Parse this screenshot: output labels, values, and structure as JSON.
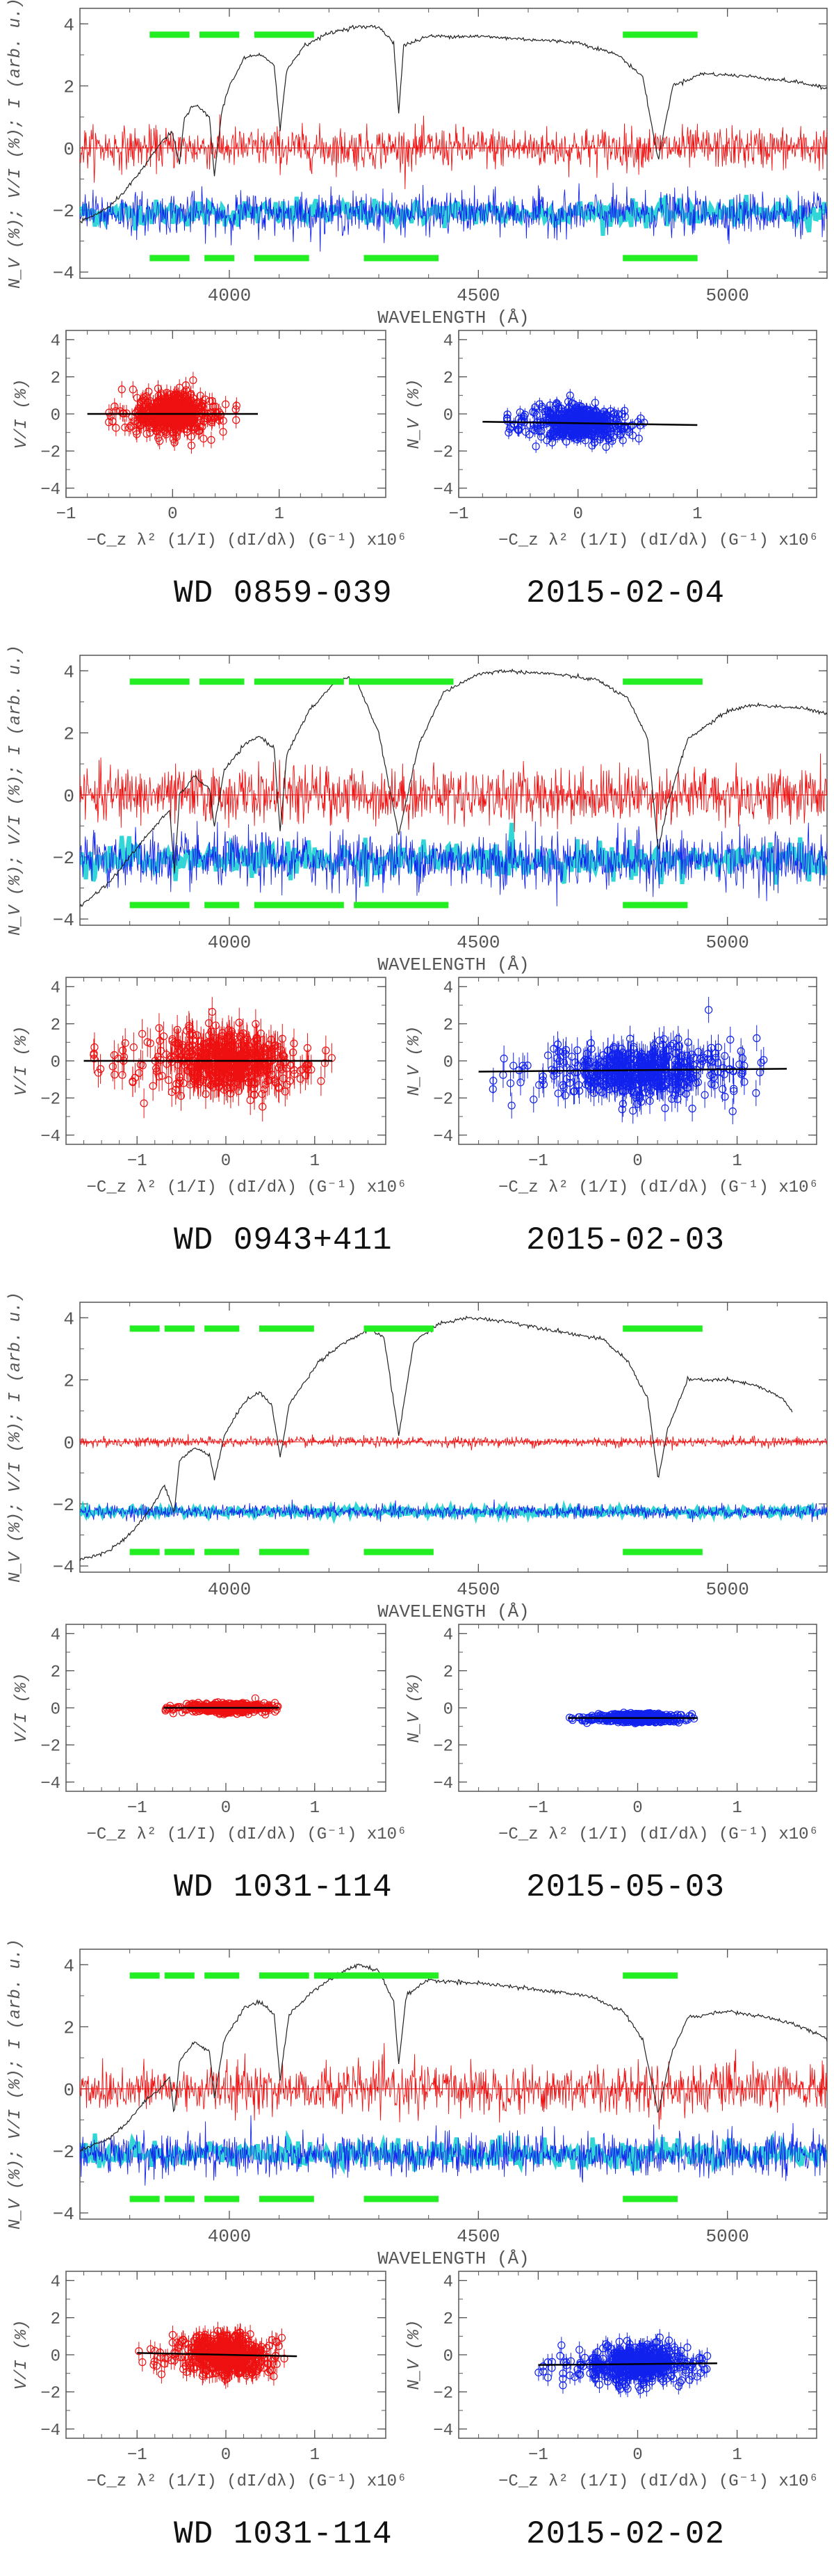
{
  "colors": {
    "intensity": "#222222",
    "stokes_v": "#ee1111",
    "null": "#1122ee",
    "null_band": "#00cccc",
    "mask": "#22ee22",
    "frame": "#555555",
    "fit": "#000000"
  },
  "chart_data": [
    {
      "type": "line",
      "target": "WD 0859-039",
      "date": "2015-02-04",
      "spectrum": {
        "xlabel": "WAVELENGTH (Å)",
        "ylabel": "N_V (%); V/I (%); I (arb. u.)",
        "xlim": [
          3700,
          5200
        ],
        "ylim": [
          -4.2,
          4.5
        ],
        "xticks": [
          4000,
          4500,
          5000
        ],
        "yticks": [
          -4,
          -2,
          0,
          2,
          4
        ],
        "continuum": [
          [
            3700,
            -2.4
          ],
          [
            3760,
            -1.9
          ],
          [
            3800,
            -1.2
          ],
          [
            3830,
            -0.6
          ],
          [
            3850,
            -0.1
          ],
          [
            3870,
            0.3
          ],
          [
            3885,
            0.5
          ],
          [
            3900,
            -0.5
          ],
          [
            3910,
            1.0
          ],
          [
            3930,
            1.4
          ],
          [
            3960,
            1.0
          ],
          [
            3970,
            -0.9
          ],
          [
            3985,
            1.2
          ],
          [
            4000,
            2.0
          ],
          [
            4030,
            2.9
          ],
          [
            4060,
            3.0
          ],
          [
            4090,
            2.7
          ],
          [
            4102,
            0.6
          ],
          [
            4115,
            2.5
          ],
          [
            4150,
            3.3
          ],
          [
            4200,
            3.7
          ],
          [
            4250,
            3.9
          ],
          [
            4300,
            3.9
          ],
          [
            4330,
            3.4
          ],
          [
            4340,
            1.1
          ],
          [
            4350,
            3.3
          ],
          [
            4400,
            3.6
          ],
          [
            4500,
            3.6
          ],
          [
            4600,
            3.5
          ],
          [
            4700,
            3.4
          ],
          [
            4780,
            3.0
          ],
          [
            4830,
            2.3
          ],
          [
            4861,
            -0.4
          ],
          [
            4890,
            2.0
          ],
          [
            4950,
            2.4
          ],
          [
            5050,
            2.3
          ],
          [
            5150,
            2.1
          ],
          [
            5200,
            1.9
          ]
        ],
        "stokes_v": {
          "level": 0.0,
          "amplitude": 0.6
        },
        "null": {
          "level": -2.1,
          "amplitude": 0.6
        },
        "mask_top": [
          [
            3840,
            3920
          ],
          [
            3940,
            4020
          ],
          [
            4050,
            4170
          ],
          [
            4790,
            4940
          ]
        ],
        "mask_bottom": [
          [
            3840,
            3920
          ],
          [
            3950,
            4010
          ],
          [
            4050,
            4160
          ],
          [
            4270,
            4420
          ],
          [
            4790,
            4940
          ]
        ],
        "mask_top_y": 3.65,
        "mask_bottom_y": -3.55
      },
      "v_panel": {
        "ylabel": "V/I (%)",
        "xlim": [
          -1.0,
          2.0
        ],
        "ylim": [
          -4.5,
          4.5
        ],
        "xticks": [
          -1,
          0,
          1
        ],
        "yticks": [
          -4,
          -2,
          0,
          2,
          4
        ],
        "cloud_x": [
          -0.6,
          0.6
        ],
        "cloud_y_spread": 0.55,
        "err": 0.45,
        "slope": 0.0,
        "fit_x": [
          -0.8,
          0.8
        ]
      },
      "n_panel": {
        "ylabel": "N_V (%)",
        "xlim": [
          -1.0,
          2.0
        ],
        "ylim": [
          -4.5,
          4.5
        ],
        "xticks": [
          -1,
          0,
          1
        ],
        "yticks": [
          -4,
          -2,
          0,
          2,
          4
        ],
        "cloud_x": [
          -0.6,
          0.6
        ],
        "cloud_y_spread": 0.45,
        "err": 0.35,
        "offset": -0.5,
        "slope": -0.1,
        "fit_x": [
          -0.8,
          1.0
        ]
      },
      "corr_xlabel": "−C_z λ² (1/I) (dI/dλ) (G⁻¹) x10⁶"
    },
    {
      "type": "line",
      "target": "WD 0943+411",
      "date": "2015-02-03",
      "spectrum": {
        "xlabel": "WAVELENGTH (Å)",
        "ylabel": "N_V (%); V/I (%); I (arb. u.)",
        "xlim": [
          3700,
          5200
        ],
        "ylim": [
          -4.2,
          4.5
        ],
        "xticks": [
          4000,
          4500,
          5000
        ],
        "yticks": [
          -4,
          -2,
          0,
          2,
          4
        ],
        "continuum": [
          [
            3700,
            -3.6
          ],
          [
            3760,
            -2.8
          ],
          [
            3800,
            -2.0
          ],
          [
            3840,
            -1.2
          ],
          [
            3880,
            -0.5
          ],
          [
            3890,
            -2.5
          ],
          [
            3900,
            0.0
          ],
          [
            3930,
            0.6
          ],
          [
            3960,
            0.2
          ],
          [
            3970,
            -1.0
          ],
          [
            3990,
            0.8
          ],
          [
            4030,
            1.6
          ],
          [
            4060,
            1.9
          ],
          [
            4090,
            1.5
          ],
          [
            4102,
            -1.2
          ],
          [
            4115,
            1.3
          ],
          [
            4160,
            2.7
          ],
          [
            4210,
            3.6
          ],
          [
            4240,
            3.8
          ],
          [
            4260,
            3.5
          ],
          [
            4300,
            2.0
          ],
          [
            4340,
            -1.3
          ],
          [
            4380,
            1.6
          ],
          [
            4430,
            3.3
          ],
          [
            4500,
            3.9
          ],
          [
            4550,
            4.0
          ],
          [
            4650,
            3.9
          ],
          [
            4740,
            3.7
          ],
          [
            4800,
            3.1
          ],
          [
            4840,
            1.8
          ],
          [
            4861,
            -1.8
          ],
          [
            4880,
            -0.3
          ],
          [
            4920,
            1.8
          ],
          [
            5000,
            2.7
          ],
          [
            5050,
            2.9
          ],
          [
            5150,
            2.8
          ],
          [
            5200,
            2.6
          ]
        ],
        "stokes_v": {
          "level": 0.0,
          "amplitude": 0.8
        },
        "null": {
          "level": -2.1,
          "amplitude": 0.8
        },
        "mask_top": [
          [
            3800,
            3920
          ],
          [
            3940,
            4030
          ],
          [
            4050,
            4230
          ],
          [
            4240,
            4450
          ],
          [
            4790,
            4950
          ]
        ],
        "mask_bottom": [
          [
            3800,
            3920
          ],
          [
            3950,
            4020
          ],
          [
            4050,
            4230
          ],
          [
            4250,
            4440
          ],
          [
            4790,
            4920
          ]
        ],
        "mask_top_y": 3.65,
        "mask_bottom_y": -3.55
      },
      "v_panel": {
        "ylabel": "V/I (%)",
        "xlim": [
          -1.8,
          1.8
        ],
        "ylim": [
          -4.5,
          4.5
        ],
        "xticks": [
          -1,
          0,
          1
        ],
        "yticks": [
          -4,
          -2,
          0,
          2,
          4
        ],
        "cloud_x": [
          -1.5,
          1.3
        ],
        "cloud_y_spread": 0.8,
        "err": 0.8,
        "slope": 0.0,
        "fit_x": [
          -1.6,
          1.2
        ]
      },
      "n_panel": {
        "ylabel": "N_V (%)",
        "xlim": [
          -1.8,
          1.8
        ],
        "ylim": [
          -4.5,
          4.5
        ],
        "xticks": [
          -1,
          0,
          1
        ],
        "yticks": [
          -4,
          -2,
          0,
          2,
          4
        ],
        "cloud_x": [
          -1.5,
          1.3
        ],
        "cloud_y_spread": 0.75,
        "err": 0.7,
        "offset": -0.5,
        "slope": 0.05,
        "fit_x": [
          -1.6,
          1.5
        ]
      },
      "corr_xlabel": "−C_z λ² (1/I) (dI/dλ) (G⁻¹) x10⁶"
    },
    {
      "type": "line",
      "target": "WD 1031-114",
      "date": "2015-05-03",
      "spectrum": {
        "xlabel": "WAVELENGTH (Å)",
        "ylabel": "N_V (%); V/I (%); I (arb. u.)",
        "xlim": [
          3700,
          5200
        ],
        "ylim": [
          -4.2,
          4.5
        ],
        "xticks": [
          4000,
          4500,
          5000
        ],
        "yticks": [
          -4,
          -2,
          0,
          2,
          4
        ],
        "continuum": [
          [
            3700,
            -3.8
          ],
          [
            3760,
            -3.5
          ],
          [
            3800,
            -3.0
          ],
          [
            3840,
            -2.2
          ],
          [
            3870,
            -1.4
          ],
          [
            3889,
            -2.3
          ],
          [
            3900,
            -0.6
          ],
          [
            3930,
            -0.2
          ],
          [
            3960,
            -0.4
          ],
          [
            3970,
            -1.2
          ],
          [
            3990,
            0.2
          ],
          [
            4030,
            1.3
          ],
          [
            4060,
            1.6
          ],
          [
            4085,
            1.2
          ],
          [
            4102,
            -0.5
          ],
          [
            4120,
            1.2
          ],
          [
            4180,
            2.6
          ],
          [
            4230,
            3.2
          ],
          [
            4280,
            3.6
          ],
          [
            4310,
            3.4
          ],
          [
            4340,
            0.2
          ],
          [
            4370,
            3.2
          ],
          [
            4420,
            3.8
          ],
          [
            4480,
            4.0
          ],
          [
            4550,
            3.9
          ],
          [
            4650,
            3.6
          ],
          [
            4750,
            3.3
          ],
          [
            4800,
            2.6
          ],
          [
            4840,
            1.4
          ],
          [
            4861,
            -1.2
          ],
          [
            4880,
            0.4
          ],
          [
            4920,
            2.0
          ],
          [
            5000,
            2.0
          ],
          [
            5060,
            1.8
          ],
          [
            5110,
            1.4
          ],
          [
            5130,
            1.0
          ]
        ],
        "stokes_v": {
          "level": 0.0,
          "amplitude": 0.15
        },
        "null": {
          "level": -2.25,
          "amplitude": 0.2
        },
        "mask_top": [
          [
            3800,
            3860
          ],
          [
            3870,
            3930
          ],
          [
            3950,
            4020
          ],
          [
            4060,
            4170
          ],
          [
            4270,
            4410
          ],
          [
            4790,
            4950
          ]
        ],
        "mask_bottom": [
          [
            3800,
            3860
          ],
          [
            3870,
            3930
          ],
          [
            3950,
            4020
          ],
          [
            4060,
            4160
          ],
          [
            4270,
            4410
          ],
          [
            4790,
            4950
          ]
        ],
        "mask_top_y": 3.65,
        "mask_bottom_y": -3.55
      },
      "v_panel": {
        "ylabel": "V/I (%)",
        "xlim": [
          -1.8,
          1.8
        ],
        "ylim": [
          -4.5,
          4.5
        ],
        "xticks": [
          -1,
          0,
          1
        ],
        "yticks": [
          -4,
          -2,
          0,
          2,
          4
        ],
        "cloud_x": [
          -0.7,
          0.6
        ],
        "cloud_y_spread": 0.12,
        "err": 0.1,
        "slope": 0.0,
        "fit_x": [
          -0.7,
          0.6
        ]
      },
      "n_panel": {
        "ylabel": "N_V (%)",
        "xlim": [
          -1.8,
          1.8
        ],
        "ylim": [
          -4.5,
          4.5
        ],
        "xticks": [
          -1,
          0,
          1
        ],
        "yticks": [
          -4,
          -2,
          0,
          2,
          4
        ],
        "cloud_x": [
          -0.7,
          0.6
        ],
        "cloud_y_spread": 0.12,
        "err": 0.1,
        "offset": -0.55,
        "slope": 0.0,
        "fit_x": [
          -0.7,
          0.6
        ]
      },
      "corr_xlabel": "−C_z λ² (1/I) (dI/dλ) (G⁻¹) x10⁶"
    },
    {
      "type": "line",
      "target": "WD 1031-114",
      "date": "2015-02-02",
      "spectrum": {
        "xlabel": "WAVELENGTH (Å)",
        "ylabel": "N_V (%); V/I (%); I (arb. u.)",
        "xlim": [
          3700,
          5200
        ],
        "ylim": [
          -4.2,
          4.5
        ],
        "xticks": [
          4000,
          4500,
          5000
        ],
        "yticks": [
          -4,
          -2,
          0,
          2,
          4
        ],
        "continuum": [
          [
            3700,
            -2.0
          ],
          [
            3760,
            -1.6
          ],
          [
            3800,
            -1.0
          ],
          [
            3830,
            -0.4
          ],
          [
            3860,
            0.0
          ],
          [
            3880,
            0.4
          ],
          [
            3889,
            -0.8
          ],
          [
            3900,
            0.9
          ],
          [
            3930,
            1.5
          ],
          [
            3960,
            1.2
          ],
          [
            3970,
            -0.3
          ],
          [
            3990,
            1.6
          ],
          [
            4030,
            2.6
          ],
          [
            4060,
            2.8
          ],
          [
            4090,
            2.4
          ],
          [
            4102,
            0.3
          ],
          [
            4120,
            2.4
          ],
          [
            4170,
            3.2
          ],
          [
            4220,
            3.7
          ],
          [
            4260,
            4.0
          ],
          [
            4300,
            3.8
          ],
          [
            4330,
            2.8
          ],
          [
            4340,
            0.8
          ],
          [
            4355,
            3.0
          ],
          [
            4400,
            3.5
          ],
          [
            4500,
            3.4
          ],
          [
            4620,
            3.2
          ],
          [
            4720,
            3.0
          ],
          [
            4790,
            2.5
          ],
          [
            4830,
            1.6
          ],
          [
            4861,
            -0.8
          ],
          [
            4885,
            1.0
          ],
          [
            4920,
            2.3
          ],
          [
            5000,
            2.5
          ],
          [
            5080,
            2.3
          ],
          [
            5150,
            2.0
          ],
          [
            5200,
            1.6
          ]
        ],
        "stokes_v": {
          "level": 0.0,
          "amplitude": 0.7
        },
        "null": {
          "level": -2.1,
          "amplitude": 0.6
        },
        "mask_top": [
          [
            3800,
            3860
          ],
          [
            3870,
            3930
          ],
          [
            3950,
            4020
          ],
          [
            4060,
            4160
          ],
          [
            4170,
            4420
          ],
          [
            4790,
            4900
          ]
        ],
        "mask_bottom": [
          [
            3800,
            3860
          ],
          [
            3870,
            3930
          ],
          [
            3950,
            4020
          ],
          [
            4060,
            4170
          ],
          [
            4270,
            4420
          ],
          [
            4790,
            4900
          ]
        ],
        "mask_top_y": 3.65,
        "mask_bottom_y": -3.55
      },
      "v_panel": {
        "ylabel": "V/I (%)",
        "xlim": [
          -1.8,
          1.8
        ],
        "ylim": [
          -4.5,
          4.5
        ],
        "xticks": [
          -1,
          0,
          1
        ],
        "yticks": [
          -4,
          -2,
          0,
          2,
          4
        ],
        "cloud_x": [
          -1.0,
          0.7
        ],
        "cloud_y_spread": 0.55,
        "err": 0.5,
        "slope": -0.1,
        "fit_x": [
          -1.0,
          0.8
        ]
      },
      "n_panel": {
        "ylabel": "N_V (%)",
        "xlim": [
          -1.8,
          1.8
        ],
        "ylim": [
          -4.5,
          4.5
        ],
        "xticks": [
          -1,
          0,
          1
        ],
        "yticks": [
          -4,
          -2,
          0,
          2,
          4
        ],
        "cloud_x": [
          -1.0,
          0.7
        ],
        "cloud_y_spread": 0.5,
        "err": 0.45,
        "offset": -0.5,
        "slope": 0.05,
        "fit_x": [
          -1.0,
          0.8
        ]
      },
      "corr_xlabel": "−C_z λ² (1/I) (dI/dλ) (G⁻¹) x10⁶"
    }
  ]
}
